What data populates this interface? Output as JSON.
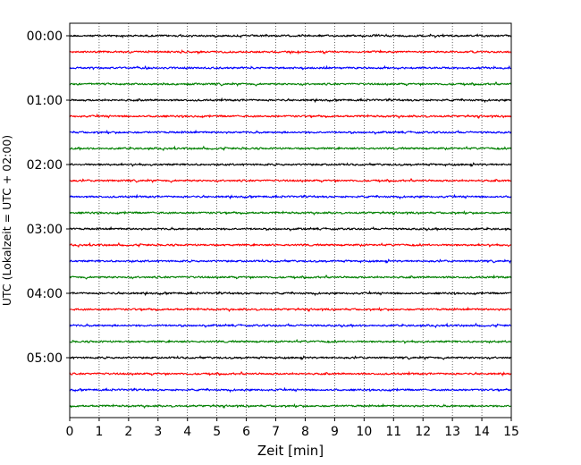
{
  "chart_data": {
    "type": "line",
    "title": "",
    "xlabel": "Zeit  [min]",
    "ylabel": "UTC (Lokalzeit = UTC + 02:00)",
    "xlim": [
      0,
      15
    ],
    "x_ticks": [
      "0",
      "1",
      "2",
      "3",
      "4",
      "5",
      "6",
      "7",
      "8",
      "9",
      "10",
      "11",
      "12",
      "13",
      "14",
      "15"
    ],
    "y_ticks": [
      "00:00",
      "01:00",
      "02:00",
      "03:00",
      "04:00",
      "05:00"
    ],
    "grid": "vertical dotted lines at each minute",
    "trace_interval_minutes": 15,
    "trace_colors": [
      "#000000",
      "#ff0000",
      "#0000ff",
      "#008000"
    ],
    "series": [
      {
        "start": "00:00",
        "color": "#000000"
      },
      {
        "start": "00:15",
        "color": "#ff0000"
      },
      {
        "start": "00:30",
        "color": "#0000ff"
      },
      {
        "start": "00:45",
        "color": "#008000"
      },
      {
        "start": "01:00",
        "color": "#000000"
      },
      {
        "start": "01:15",
        "color": "#ff0000"
      },
      {
        "start": "01:30",
        "color": "#0000ff"
      },
      {
        "start": "01:45",
        "color": "#008000"
      },
      {
        "start": "02:00",
        "color": "#000000"
      },
      {
        "start": "02:15",
        "color": "#ff0000"
      },
      {
        "start": "02:30",
        "color": "#0000ff"
      },
      {
        "start": "02:45",
        "color": "#008000"
      },
      {
        "start": "03:00",
        "color": "#000000"
      },
      {
        "start": "03:15",
        "color": "#ff0000"
      },
      {
        "start": "03:30",
        "color": "#0000ff"
      },
      {
        "start": "03:45",
        "color": "#008000"
      },
      {
        "start": "04:00",
        "color": "#000000"
      },
      {
        "start": "04:15",
        "color": "#ff0000"
      },
      {
        "start": "04:30",
        "color": "#0000ff"
      },
      {
        "start": "04:45",
        "color": "#008000"
      },
      {
        "start": "05:00",
        "color": "#000000"
      },
      {
        "start": "05:15",
        "color": "#ff0000"
      },
      {
        "start": "05:30",
        "color": "#0000ff"
      },
      {
        "start": "05:45",
        "color": "#008000"
      }
    ]
  }
}
